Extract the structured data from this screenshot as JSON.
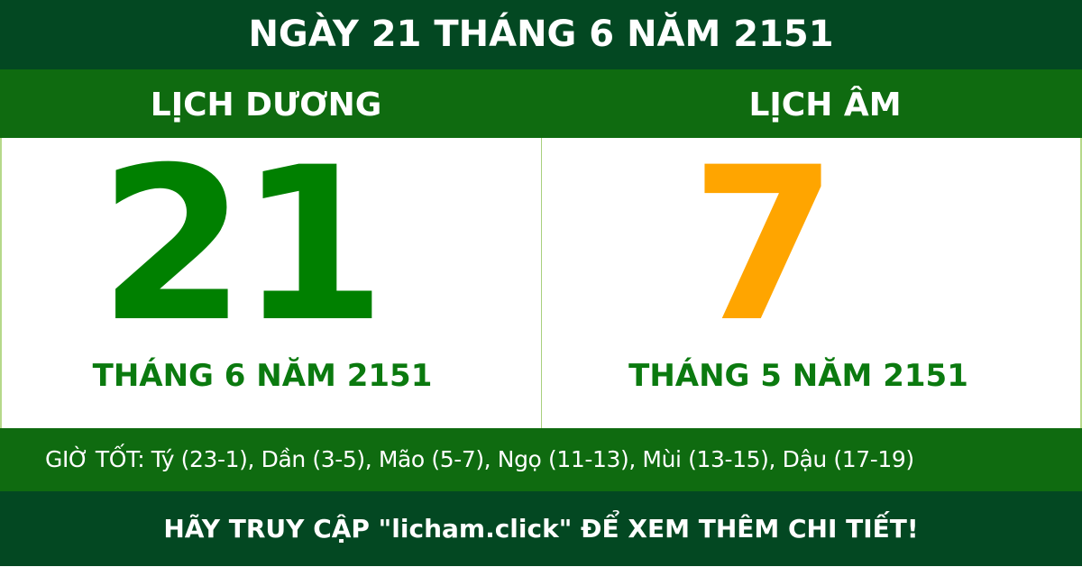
{
  "title": "NGÀY 21 THÁNG 6 NĂM 2151",
  "solar": {
    "label": "LỊCH DƯƠNG",
    "day": "21",
    "month_year": "THÁNG 6 NĂM 2151"
  },
  "lunar": {
    "label": "LỊCH ÂM",
    "day": "7",
    "month_year": "THÁNG 5 NĂM 2151"
  },
  "good_hours": "GIỜ TỐT: Tý (23-1), Dần (3-5), Mão (5-7), Ngọ (11-13), Mùi (13-15), Dậu (17-19)",
  "footer": "HÃY TRUY CẬP \"licham.click\" ĐỂ XEM THÊM CHI TIẾT!",
  "colors": {
    "dark_green": "#034822",
    "green": "#0f6b10",
    "solar_day": "#008000",
    "lunar_day": "#ffa500"
  }
}
